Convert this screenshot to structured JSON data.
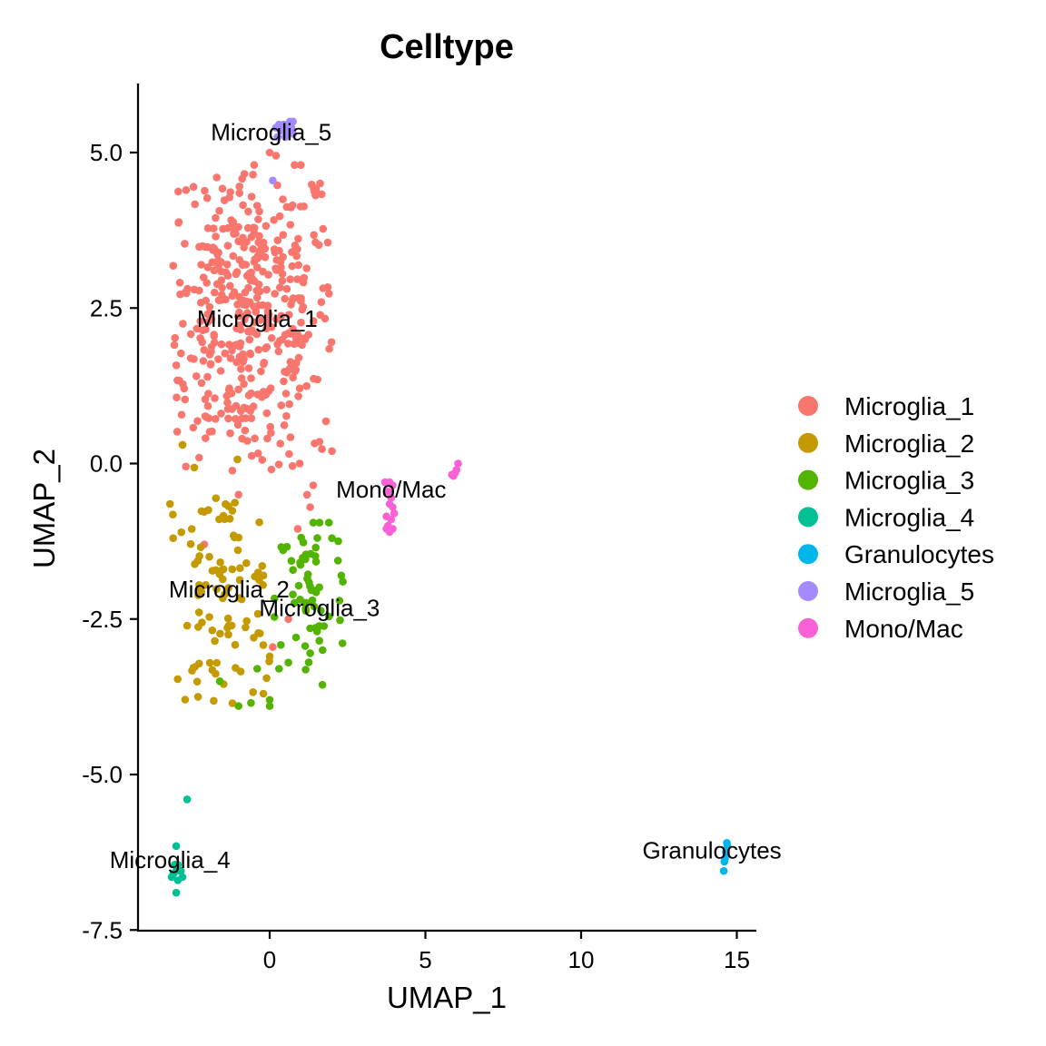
{
  "chart_data": {
    "type": "scatter",
    "title": "Celltype",
    "xlabel": "UMAP_1",
    "ylabel": "UMAP_2",
    "xlim": [
      -4.2,
      15.5
    ],
    "ylim": [
      -7.5,
      6.1
    ],
    "x_ticks": [
      0,
      5,
      10,
      15
    ],
    "y_ticks": [
      5.0,
      2.5,
      0.0,
      -2.5,
      -5.0,
      -7.5
    ],
    "x_tick_labels": [
      "0",
      "5",
      "10",
      "15"
    ],
    "y_tick_labels": [
      "5.0",
      "2.5",
      "0.0",
      "-2.5",
      "-5.0",
      "-7.5"
    ],
    "grid": false,
    "legend_position": "right",
    "series": [
      {
        "name": "Microglia_1",
        "color": "#F8766D",
        "label": "Microglia_1",
        "label_pos": [
          -0.4,
          2.2
        ],
        "cluster": {
          "cx": -0.7,
          "cy": 2.4,
          "sx": 1.45,
          "sy": 1.35,
          "n": 420
        },
        "points": [
          [
            -1.7,
            4.6
          ],
          [
            -0.5,
            4.8
          ],
          [
            0.8,
            4.8
          ],
          [
            1.0,
            4.8
          ],
          [
            -2.8,
            0.3
          ],
          [
            -1.0,
            -0.5
          ],
          [
            0.9,
            -1.05
          ],
          [
            1.3,
            -0.7
          ],
          [
            1.2,
            -0.5
          ],
          [
            -2.1,
            -1.3
          ],
          [
            0.6,
            -2.5
          ],
          [
            0.1,
            -2.95
          ],
          [
            0.0,
            5.0
          ],
          [
            0.2,
            4.95
          ],
          [
            2.0,
            0.2
          ],
          [
            1.6,
            0.35
          ],
          [
            1.4,
            -0.35
          ]
        ]
      },
      {
        "name": "Microglia_2",
        "color": "#C49A00",
        "label": "Microglia_2",
        "label_pos": [
          -1.3,
          -2.15
        ],
        "cluster": {
          "cx": -1.6,
          "cy": -2.2,
          "sx": 0.95,
          "sy": 0.95,
          "n": 95
        },
        "points": [
          [
            -3.1,
            -1.2
          ],
          [
            -2.8,
            0.3
          ],
          [
            -3.2,
            -0.65
          ],
          [
            -0.2,
            -1.8
          ],
          [
            -0.1,
            -3.45
          ],
          [
            0.0,
            -3.1
          ],
          [
            -2.3,
            -3.75
          ],
          [
            -0.2,
            -3.7
          ]
        ]
      },
      {
        "name": "Microglia_3",
        "color": "#53B400",
        "label": "Microglia_3",
        "label_pos": [
          1.6,
          -2.45
        ],
        "cluster": {
          "cx": 1.3,
          "cy": -2.2,
          "sx": 0.55,
          "sy": 0.75,
          "n": 55
        },
        "points": [
          [
            1.4,
            -0.95
          ],
          [
            1.6,
            -0.95
          ],
          [
            1.9,
            -0.95
          ],
          [
            2.0,
            -1.2
          ],
          [
            2.2,
            -1.25
          ],
          [
            2.3,
            -1.8
          ],
          [
            2.35,
            -1.9
          ],
          [
            -1.0,
            -3.9
          ],
          [
            -0.6,
            -3.85
          ],
          [
            0.0,
            -3.9
          ],
          [
            0.0,
            -3.8
          ],
          [
            -1.6,
            -3.5
          ],
          [
            -0.4,
            -3.3
          ],
          [
            0.3,
            -3.3
          ],
          [
            0.6,
            -3.2
          ],
          [
            1.3,
            -3.05
          ],
          [
            1.7,
            -3.0
          ],
          [
            1.3,
            -2.65
          ]
        ]
      },
      {
        "name": "Microglia_4",
        "color": "#00C094",
        "label": "Microglia_4",
        "label_pos": [
          -3.2,
          -6.5
        ],
        "cluster": {
          "cx": -3.0,
          "cy": -6.55,
          "sx": 0.18,
          "sy": 0.2,
          "n": 0
        },
        "points": [
          [
            -2.65,
            -5.4
          ],
          [
            -3.0,
            -6.15
          ],
          [
            -3.05,
            -6.45
          ],
          [
            -2.95,
            -6.45
          ],
          [
            -3.0,
            -6.55
          ],
          [
            -2.85,
            -6.55
          ],
          [
            -3.1,
            -6.6
          ],
          [
            -2.8,
            -6.65
          ],
          [
            -3.15,
            -6.65
          ],
          [
            -2.95,
            -6.7
          ],
          [
            -3.0,
            -6.9
          ]
        ]
      },
      {
        "name": "Granulocytes",
        "color": "#00B6EB",
        "label": "Granulocytes",
        "label_pos": [
          14.2,
          -6.35
        ],
        "cluster": {
          "cx": 14.6,
          "cy": -6.3,
          "sx": 0.05,
          "sy": 0.1,
          "n": 0
        },
        "points": [
          [
            14.68,
            -6.1
          ],
          [
            14.7,
            -6.15
          ],
          [
            14.65,
            -6.25
          ],
          [
            14.62,
            -6.35
          ],
          [
            14.6,
            -6.4
          ],
          [
            14.58,
            -6.55
          ]
        ]
      },
      {
        "name": "Microglia_5",
        "color": "#A58AFF",
        "label": "Microglia_5",
        "label_pos": [
          0.05,
          5.2
        ],
        "cluster": {
          "cx": 0.55,
          "cy": 5.35,
          "sx": 0.15,
          "sy": 0.08,
          "n": 0
        },
        "points": [
          [
            0.2,
            5.4
          ],
          [
            0.3,
            5.45
          ],
          [
            0.45,
            5.45
          ],
          [
            0.55,
            5.45
          ],
          [
            0.65,
            5.5
          ],
          [
            0.75,
            5.5
          ],
          [
            0.35,
            5.35
          ],
          [
            0.55,
            5.35
          ],
          [
            0.75,
            5.3
          ],
          [
            0.25,
            5.25
          ],
          [
            0.5,
            5.25
          ],
          [
            0.7,
            5.4
          ],
          [
            0.1,
            4.55
          ]
        ]
      },
      {
        "name": "Mono/Mac",
        "color": "#FB61D7",
        "label": "Mono/Mac",
        "label_pos": [
          3.9,
          -0.55
        ],
        "cluster": {
          "cx": 3.9,
          "cy": -0.75,
          "sx": 0.1,
          "sy": 0.2,
          "n": 0
        },
        "points": [
          [
            3.7,
            -0.3
          ],
          [
            3.85,
            -0.3
          ],
          [
            3.95,
            -0.35
          ],
          [
            3.8,
            -0.45
          ],
          [
            3.9,
            -0.55
          ],
          [
            3.85,
            -0.65
          ],
          [
            3.95,
            -0.7
          ],
          [
            4.0,
            -0.8
          ],
          [
            3.75,
            -0.85
          ],
          [
            3.9,
            -0.9
          ],
          [
            3.8,
            -1.0
          ],
          [
            3.75,
            -1.05
          ],
          [
            3.95,
            -1.05
          ],
          [
            3.85,
            -1.1
          ],
          [
            6.05,
            0.0
          ],
          [
            6.0,
            -0.1
          ],
          [
            5.95,
            -0.15
          ],
          [
            5.9,
            -0.2
          ],
          [
            5.85,
            -0.18
          ]
        ]
      }
    ]
  }
}
